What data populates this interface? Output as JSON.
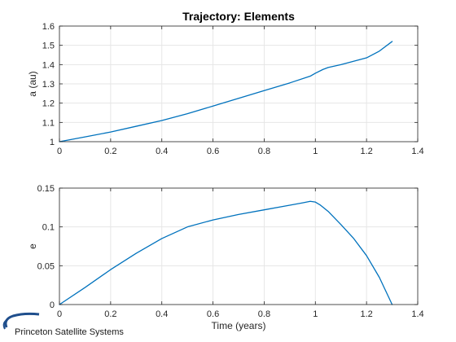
{
  "chart_data": [
    {
      "type": "line",
      "title": "Trajectory: Elements",
      "xlabel": "",
      "ylabel": "a (au)",
      "xlim": [
        0,
        1.4
      ],
      "ylim": [
        1,
        1.6
      ],
      "xticks": [
        "0",
        "0.2",
        "0.4",
        "0.6",
        "0.8",
        "1",
        "1.2",
        "1.4"
      ],
      "yticks": [
        "1",
        "1.1",
        "1.2",
        "1.3",
        "1.4",
        "1.5",
        "1.6"
      ],
      "grid": true,
      "series": [
        {
          "color": "#0072bd",
          "x": [
            0,
            0.1,
            0.2,
            0.3,
            0.4,
            0.5,
            0.6,
            0.7,
            0.8,
            0.9,
            0.98,
            1.0,
            1.03,
            1.05,
            1.1,
            1.2,
            1.25,
            1.3
          ],
          "y": [
            1.0,
            1.025,
            1.05,
            1.08,
            1.11,
            1.145,
            1.185,
            1.225,
            1.265,
            1.305,
            1.34,
            1.355,
            1.375,
            1.385,
            1.4,
            1.435,
            1.47,
            1.52
          ]
        }
      ]
    },
    {
      "type": "line",
      "title": "",
      "xlabel": "Time (years)",
      "ylabel": "e",
      "xlim": [
        0,
        1.4
      ],
      "ylim": [
        0,
        0.15
      ],
      "xticks": [
        "0",
        "0.2",
        "0.4",
        "0.6",
        "0.8",
        "1",
        "1.2",
        "1.4"
      ],
      "yticks": [
        "0",
        "0.05",
        "0.1",
        "0.15"
      ],
      "grid": true,
      "series": [
        {
          "color": "#0072bd",
          "x": [
            0,
            0.1,
            0.2,
            0.3,
            0.4,
            0.5,
            0.6,
            0.7,
            0.8,
            0.9,
            0.95,
            0.98,
            1.0,
            1.02,
            1.05,
            1.1,
            1.15,
            1.2,
            1.25,
            1.3
          ],
          "y": [
            0,
            0.022,
            0.045,
            0.066,
            0.085,
            0.1,
            0.109,
            0.116,
            0.122,
            0.128,
            0.131,
            0.133,
            0.132,
            0.128,
            0.12,
            0.103,
            0.085,
            0.063,
            0.035,
            0.0
          ]
        }
      ]
    }
  ],
  "logo": {
    "text": "Princeton Satellite Systems"
  },
  "colors": {
    "axes": "#262626",
    "grid": "#e6e6e6",
    "line": "#0072bd",
    "logo_arc": "#1f4e8c"
  }
}
